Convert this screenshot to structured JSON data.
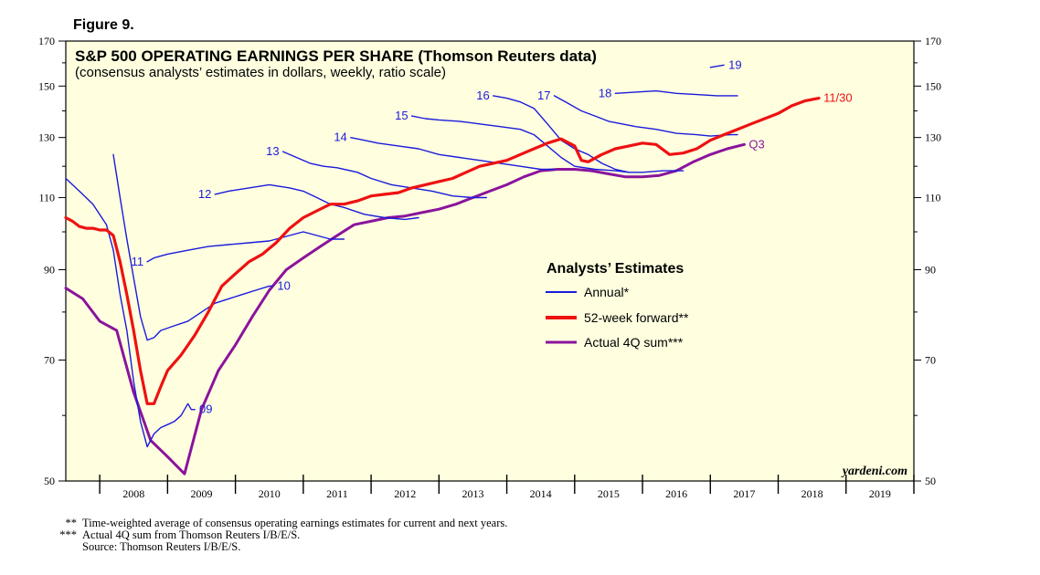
{
  "figure_label": "Figure 9.",
  "watermark": "yardeni.com",
  "footnotes": [
    {
      "mark": "**",
      "text": "Time-weighted average of consensus operating earnings estimates for current and next years."
    },
    {
      "mark": "***",
      "text": "Actual 4Q sum from Thomson Reuters I/B/E/S."
    },
    {
      "mark": "",
      "text": "Source: Thomson Reuters I/B/E/S."
    }
  ],
  "colors": {
    "annual": "#1a1adb",
    "forward": "#ee1111",
    "actual": "#8a149c",
    "plot_bg": "#ffffe0"
  },
  "chart_data": {
    "type": "line",
    "title": "S&P 500 OPERATING EARNINGS PER SHARE (Thomson Reuters data)",
    "subtitle": "(consensus analysts’ estimates in dollars, weekly, ratio scale)",
    "y_scale": "log",
    "ylim": [
      50,
      170
    ],
    "y_ticks": [
      50,
      70,
      90,
      110,
      130,
      150,
      170
    ],
    "xlim": [
      2007.5,
      2020.0
    ],
    "x_tick_labels": [
      "2008",
      "2009",
      "2010",
      "2011",
      "2012",
      "2013",
      "2014",
      "2015",
      "2016",
      "2017",
      "2018",
      "2019"
    ],
    "legend": {
      "title": "Analysts’ Estimates",
      "placement": "center-right",
      "entries": [
        {
          "key": "annual",
          "label": "Annual*"
        },
        {
          "key": "forward",
          "label": "52-week forward**"
        },
        {
          "key": "actual",
          "label": "Actual 4Q sum***"
        }
      ]
    },
    "annual_series": [
      {
        "name": "09",
        "label_pos": "end",
        "points": [
          [
            2007.5,
            116
          ],
          [
            2007.7,
            112
          ],
          [
            2007.9,
            108
          ],
          [
            2008.1,
            102
          ],
          [
            2008.2,
            95
          ],
          [
            2008.3,
            84
          ],
          [
            2008.4,
            76
          ],
          [
            2008.5,
            66
          ],
          [
            2008.6,
            59
          ],
          [
            2008.7,
            55
          ],
          [
            2008.8,
            57
          ],
          [
            2008.9,
            58
          ],
          [
            2009.0,
            58.5
          ],
          [
            2009.1,
            59
          ],
          [
            2009.2,
            60
          ],
          [
            2009.25,
            61
          ],
          [
            2009.3,
            62
          ],
          [
            2009.35,
            61
          ],
          [
            2009.4,
            61
          ]
        ]
      },
      {
        "name": "10",
        "label_pos": "end",
        "points": [
          [
            2008.2,
            124
          ],
          [
            2008.3,
            110
          ],
          [
            2008.4,
            98
          ],
          [
            2008.5,
            88
          ],
          [
            2008.6,
            79
          ],
          [
            2008.7,
            74
          ],
          [
            2008.8,
            74.5
          ],
          [
            2008.9,
            76
          ],
          [
            2009.0,
            76.5
          ],
          [
            2009.1,
            77
          ],
          [
            2009.3,
            78
          ],
          [
            2009.5,
            80
          ],
          [
            2009.7,
            82
          ],
          [
            2009.9,
            83
          ],
          [
            2010.1,
            84
          ],
          [
            2010.3,
            85
          ],
          [
            2010.5,
            86
          ],
          [
            2010.55,
            86
          ]
        ]
      },
      {
        "name": "11",
        "label_pos": "start",
        "points": [
          [
            2008.7,
            92
          ],
          [
            2008.8,
            93
          ],
          [
            2009.0,
            94
          ],
          [
            2009.3,
            95
          ],
          [
            2009.6,
            96
          ],
          [
            2009.9,
            96.5
          ],
          [
            2010.2,
            97
          ],
          [
            2010.5,
            97.5
          ],
          [
            2010.8,
            99
          ],
          [
            2011.0,
            100
          ],
          [
            2011.2,
            99
          ],
          [
            2011.4,
            98
          ],
          [
            2011.6,
            98
          ]
        ]
      },
      {
        "name": "12",
        "label_pos": "start",
        "points": [
          [
            2009.7,
            111
          ],
          [
            2009.9,
            112
          ],
          [
            2010.2,
            113
          ],
          [
            2010.5,
            114
          ],
          [
            2010.8,
            113
          ],
          [
            2011.0,
            112
          ],
          [
            2011.2,
            110
          ],
          [
            2011.4,
            108
          ],
          [
            2011.6,
            107
          ],
          [
            2011.9,
            105
          ],
          [
            2012.2,
            104
          ],
          [
            2012.5,
            103.5
          ],
          [
            2012.7,
            104
          ]
        ]
      },
      {
        "name": "13",
        "label_pos": "start",
        "points": [
          [
            2010.7,
            125
          ],
          [
            2010.9,
            123
          ],
          [
            2011.1,
            121
          ],
          [
            2011.3,
            120
          ],
          [
            2011.5,
            119.5
          ],
          [
            2011.8,
            118
          ],
          [
            2012.0,
            116
          ],
          [
            2012.3,
            114
          ],
          [
            2012.6,
            113
          ],
          [
            2012.9,
            112
          ],
          [
            2013.2,
            110.5
          ],
          [
            2013.5,
            110
          ],
          [
            2013.7,
            110
          ]
        ]
      },
      {
        "name": "14",
        "label_pos": "start",
        "points": [
          [
            2011.7,
            130
          ],
          [
            2011.9,
            129
          ],
          [
            2012.1,
            128
          ],
          [
            2012.4,
            127
          ],
          [
            2012.7,
            126
          ],
          [
            2013.0,
            124
          ],
          [
            2013.3,
            123
          ],
          [
            2013.6,
            122
          ],
          [
            2013.9,
            121
          ],
          [
            2014.2,
            120
          ],
          [
            2014.5,
            119
          ],
          [
            2014.7,
            119
          ]
        ]
      },
      {
        "name": "15",
        "label_pos": "start",
        "points": [
          [
            2012.6,
            138
          ],
          [
            2012.8,
            137
          ],
          [
            2013.0,
            136.5
          ],
          [
            2013.3,
            136
          ],
          [
            2013.6,
            135
          ],
          [
            2013.9,
            134
          ],
          [
            2014.2,
            133
          ],
          [
            2014.4,
            131
          ],
          [
            2014.6,
            127
          ],
          [
            2014.8,
            123
          ],
          [
            2015.0,
            120
          ],
          [
            2015.3,
            119
          ],
          [
            2015.6,
            118.5
          ],
          [
            2015.8,
            118
          ]
        ]
      },
      {
        "name": "16",
        "label_pos": "start",
        "points": [
          [
            2013.8,
            146
          ],
          [
            2014.0,
            145
          ],
          [
            2014.2,
            143.5
          ],
          [
            2014.4,
            141
          ],
          [
            2014.6,
            135
          ],
          [
            2014.8,
            129
          ],
          [
            2015.0,
            126
          ],
          [
            2015.2,
            124
          ],
          [
            2015.4,
            121
          ],
          [
            2015.6,
            119
          ],
          [
            2015.8,
            118
          ],
          [
            2016.0,
            118
          ],
          [
            2016.3,
            118.5
          ],
          [
            2016.6,
            118.5
          ]
        ]
      },
      {
        "name": "17",
        "label_pos": "start",
        "points": [
          [
            2014.7,
            146
          ],
          [
            2014.9,
            143
          ],
          [
            2015.1,
            140
          ],
          [
            2015.3,
            138
          ],
          [
            2015.5,
            136
          ],
          [
            2015.7,
            135
          ],
          [
            2015.9,
            134
          ],
          [
            2016.2,
            133
          ],
          [
            2016.5,
            131.5
          ],
          [
            2016.8,
            131
          ],
          [
            2017.0,
            130.5
          ],
          [
            2017.3,
            131
          ],
          [
            2017.4,
            131
          ]
        ]
      },
      {
        "name": "18",
        "label_pos": "start",
        "points": [
          [
            2015.6,
            147
          ],
          [
            2015.9,
            147.5
          ],
          [
            2016.2,
            148
          ],
          [
            2016.5,
            147
          ],
          [
            2016.8,
            146.5
          ],
          [
            2017.1,
            146
          ],
          [
            2017.3,
            146
          ],
          [
            2017.4,
            146
          ]
        ]
      },
      {
        "name": "19",
        "label_pos": "end",
        "points": [
          [
            2017.0,
            158
          ],
          [
            2017.1,
            158.5
          ],
          [
            2017.2,
            159
          ]
        ]
      }
    ],
    "forward_series": {
      "name": "11/30",
      "label_pos": "end",
      "points": [
        [
          2007.5,
          104
        ],
        [
          2007.6,
          103
        ],
        [
          2007.7,
          101.5
        ],
        [
          2007.8,
          101
        ],
        [
          2007.9,
          101
        ],
        [
          2008.0,
          100.5
        ],
        [
          2008.1,
          100.5
        ],
        [
          2008.2,
          99
        ],
        [
          2008.3,
          92
        ],
        [
          2008.4,
          84
        ],
        [
          2008.5,
          76
        ],
        [
          2008.6,
          68
        ],
        [
          2008.7,
          62
        ],
        [
          2008.8,
          62
        ],
        [
          2008.9,
          65
        ],
        [
          2009.0,
          68
        ],
        [
          2009.2,
          71
        ],
        [
          2009.4,
          75
        ],
        [
          2009.6,
          80
        ],
        [
          2009.8,
          86
        ],
        [
          2010.0,
          89
        ],
        [
          2010.2,
          92
        ],
        [
          2010.4,
          94
        ],
        [
          2010.6,
          97
        ],
        [
          2010.8,
          101
        ],
        [
          2011.0,
          104
        ],
        [
          2011.2,
          106
        ],
        [
          2011.4,
          108
        ],
        [
          2011.6,
          108
        ],
        [
          2011.8,
          109
        ],
        [
          2012.0,
          110.5
        ],
        [
          2012.2,
          111
        ],
        [
          2012.4,
          111.5
        ],
        [
          2012.6,
          113
        ],
        [
          2012.8,
          114
        ],
        [
          2013.0,
          115
        ],
        [
          2013.2,
          116
        ],
        [
          2013.4,
          118
        ],
        [
          2013.6,
          120
        ],
        [
          2013.8,
          121
        ],
        [
          2014.0,
          122
        ],
        [
          2014.2,
          124
        ],
        [
          2014.4,
          126
        ],
        [
          2014.6,
          128
        ],
        [
          2014.8,
          129.5
        ],
        [
          2015.0,
          127
        ],
        [
          2015.1,
          122
        ],
        [
          2015.2,
          121.5
        ],
        [
          2015.4,
          124
        ],
        [
          2015.6,
          126
        ],
        [
          2015.8,
          127
        ],
        [
          2016.0,
          128
        ],
        [
          2016.2,
          127.5
        ],
        [
          2016.4,
          124
        ],
        [
          2016.6,
          124.5
        ],
        [
          2016.8,
          126
        ],
        [
          2017.0,
          129
        ],
        [
          2017.2,
          131
        ],
        [
          2017.4,
          133
        ],
        [
          2017.6,
          135
        ],
        [
          2017.8,
          137
        ],
        [
          2018.0,
          139
        ],
        [
          2018.2,
          142
        ],
        [
          2018.4,
          144
        ],
        [
          2018.6,
          145
        ]
      ]
    },
    "actual_series": {
      "name": "Q3",
      "label_pos": "end",
      "points": [
        [
          2007.5,
          85.5
        ],
        [
          2007.75,
          83
        ],
        [
          2008.0,
          78
        ],
        [
          2008.25,
          76
        ],
        [
          2008.5,
          64
        ],
        [
          2008.75,
          56
        ],
        [
          2009.0,
          53.5
        ],
        [
          2009.25,
          51
        ],
        [
          2009.5,
          61
        ],
        [
          2009.75,
          68
        ],
        [
          2010.0,
          73
        ],
        [
          2010.25,
          79
        ],
        [
          2010.5,
          85
        ],
        [
          2010.75,
          90
        ],
        [
          2011.0,
          93
        ],
        [
          2011.25,
          96
        ],
        [
          2011.5,
          99
        ],
        [
          2011.75,
          102
        ],
        [
          2012.0,
          103
        ],
        [
          2012.25,
          104
        ],
        [
          2012.5,
          104.5
        ],
        [
          2012.75,
          105.5
        ],
        [
          2013.0,
          106.5
        ],
        [
          2013.25,
          108
        ],
        [
          2013.5,
          110
        ],
        [
          2013.75,
          112
        ],
        [
          2014.0,
          114
        ],
        [
          2014.25,
          116.5
        ],
        [
          2014.5,
          118.5
        ],
        [
          2014.75,
          119
        ],
        [
          2015.0,
          119
        ],
        [
          2015.25,
          118.5
        ],
        [
          2015.5,
          117.5
        ],
        [
          2015.75,
          116.5
        ],
        [
          2016.0,
          116.5
        ],
        [
          2016.25,
          117
        ],
        [
          2016.5,
          118.5
        ],
        [
          2016.75,
          121.5
        ],
        [
          2017.0,
          124
        ],
        [
          2017.25,
          126
        ],
        [
          2017.5,
          127.5
        ]
      ]
    }
  }
}
